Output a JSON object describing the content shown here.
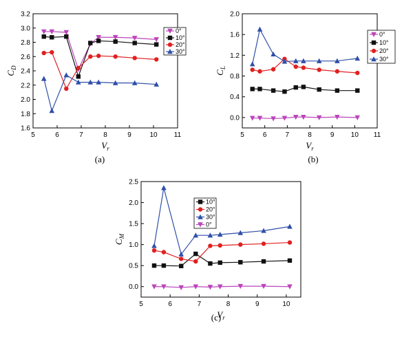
{
  "colors": {
    "s0": "#bb44bb",
    "s10": "#111111",
    "s20": "#e02020",
    "s30": "#2f4fa8"
  },
  "chart_data": [
    {
      "id": "a",
      "type": "line",
      "caption": "(a)",
      "ylabel_main": "C",
      "ylabel_sub": "D",
      "xlabel_main": "V",
      "xlabel_sub": "r",
      "xlim": [
        5,
        11
      ],
      "ylim": [
        1.6,
        3.2
      ],
      "xticks": [
        5,
        6,
        7,
        8,
        9,
        10,
        11
      ],
      "yticks": [
        1.6,
        1.8,
        2.0,
        2.2,
        2.4,
        2.6,
        2.8,
        3.0,
        3.2
      ],
      "ytick_labels": [
        "1.6",
        "1.8",
        "2.0",
        "2.2",
        "2.4",
        "2.6",
        "2.8",
        "3.0",
        "3.2"
      ],
      "legend": [
        "0°",
        "10°",
        "20°",
        "30°"
      ],
      "series": [
        {
          "name": "0°",
          "color_key": "s0",
          "marker": "tri-down",
          "x": [
            5.45,
            5.78,
            6.38,
            6.88,
            7.38,
            7.72,
            8.42,
            9.22,
            10.12
          ],
          "y": [
            2.95,
            2.95,
            2.94,
            2.42,
            2.78,
            2.87,
            2.87,
            2.86,
            2.84
          ]
        },
        {
          "name": "10°",
          "color_key": "s10",
          "marker": "square",
          "x": [
            5.45,
            5.78,
            6.38,
            6.88,
            7.38,
            7.72,
            8.42,
            9.22,
            10.12
          ],
          "y": [
            2.88,
            2.87,
            2.88,
            2.32,
            2.79,
            2.82,
            2.81,
            2.79,
            2.77
          ]
        },
        {
          "name": "20°",
          "color_key": "s20",
          "marker": "circle",
          "x": [
            5.45,
            5.78,
            6.38,
            6.88,
            7.38,
            7.72,
            8.42,
            9.22,
            10.12
          ],
          "y": [
            2.65,
            2.66,
            2.15,
            2.44,
            2.6,
            2.61,
            2.6,
            2.58,
            2.56
          ]
        },
        {
          "name": "30°",
          "color_key": "s30",
          "marker": "tri-up",
          "x": [
            5.45,
            5.78,
            6.38,
            6.88,
            7.38,
            7.72,
            8.42,
            9.22,
            10.12
          ],
          "y": [
            2.29,
            1.84,
            2.34,
            2.24,
            2.24,
            2.24,
            2.23,
            2.23,
            2.21
          ]
        }
      ]
    },
    {
      "id": "b",
      "type": "line",
      "caption": "(b)",
      "ylabel_main": "C",
      "ylabel_sub": "L",
      "xlabel_main": "V",
      "xlabel_sub": "r",
      "xlim": [
        5,
        11
      ],
      "ylim": [
        -0.2,
        2.0
      ],
      "xticks": [
        5,
        6,
        7,
        8,
        9,
        10,
        11
      ],
      "yticks": [
        0.0,
        0.4,
        0.8,
        1.2,
        1.6,
        2.0
      ],
      "ytick_labels": [
        "0.0",
        "0.4",
        "0.8",
        "1.2",
        "1.6",
        "2.0"
      ],
      "legend": [
        "0°",
        "10°",
        "20°",
        "30°"
      ],
      "series": [
        {
          "name": "0°",
          "color_key": "s0",
          "marker": "tri-down",
          "x": [
            5.45,
            5.78,
            6.38,
            6.88,
            7.38,
            7.72,
            8.42,
            9.22,
            10.12
          ],
          "y": [
            -0.01,
            -0.01,
            -0.02,
            -0.01,
            0.01,
            0.01,
            0.0,
            0.01,
            0.0
          ]
        },
        {
          "name": "10°",
          "color_key": "s10",
          "marker": "square",
          "x": [
            5.45,
            5.78,
            6.38,
            6.88,
            7.38,
            7.72,
            8.42,
            9.22,
            10.12
          ],
          "y": [
            0.55,
            0.55,
            0.52,
            0.5,
            0.58,
            0.59,
            0.54,
            0.52,
            0.52
          ]
        },
        {
          "name": "20°",
          "color_key": "s20",
          "marker": "circle",
          "x": [
            5.45,
            5.78,
            6.38,
            6.88,
            7.38,
            7.72,
            8.42,
            9.22,
            10.12
          ],
          "y": [
            0.92,
            0.89,
            0.93,
            1.13,
            0.98,
            0.96,
            0.92,
            0.89,
            0.86
          ]
        },
        {
          "name": "30°",
          "color_key": "s30",
          "marker": "tri-up",
          "x": [
            5.45,
            5.78,
            6.38,
            6.88,
            7.38,
            7.72,
            8.42,
            9.22,
            10.12
          ],
          "y": [
            1.03,
            1.7,
            1.22,
            1.08,
            1.09,
            1.09,
            1.09,
            1.09,
            1.14
          ]
        }
      ]
    },
    {
      "id": "c",
      "type": "line",
      "caption": "(c)",
      "ylabel_main": "C",
      "ylabel_sub": "M",
      "xlabel_main": "V",
      "xlabel_sub": "r",
      "xlim": [
        5,
        10.5
      ],
      "ylim": [
        -0.25,
        2.5
      ],
      "xticks": [
        5,
        6,
        7,
        8,
        9,
        10
      ],
      "yticks": [
        0.0,
        0.5,
        1.0,
        1.5,
        2.0,
        2.5
      ],
      "ytick_labels": [
        "0.0",
        "0.5",
        "1.0",
        "1.5",
        "2.0",
        "2.5"
      ],
      "legend": [
        "10°",
        "20°",
        "30°",
        "0°"
      ],
      "series": [
        {
          "name": "10°",
          "color_key": "s10",
          "marker": "square",
          "x": [
            5.45,
            5.78,
            6.38,
            6.88,
            7.38,
            7.72,
            8.42,
            9.22,
            10.12
          ],
          "y": [
            0.5,
            0.5,
            0.49,
            0.78,
            0.55,
            0.57,
            0.58,
            0.6,
            0.62
          ]
        },
        {
          "name": "20°",
          "color_key": "s20",
          "marker": "circle",
          "x": [
            5.45,
            5.78,
            6.38,
            6.88,
            7.38,
            7.72,
            8.42,
            9.22,
            10.12
          ],
          "y": [
            0.86,
            0.82,
            0.66,
            0.6,
            0.97,
            0.98,
            1.0,
            1.02,
            1.05
          ]
        },
        {
          "name": "30°",
          "color_key": "s30",
          "marker": "tri-up",
          "x": [
            5.45,
            5.78,
            6.38,
            6.88,
            7.38,
            7.72,
            8.42,
            9.22,
            10.12
          ],
          "y": [
            0.97,
            2.35,
            0.77,
            1.22,
            1.22,
            1.24,
            1.28,
            1.33,
            1.43
          ]
        },
        {
          "name": "0°",
          "color_key": "s0",
          "marker": "tri-down",
          "x": [
            5.45,
            5.78,
            6.38,
            6.88,
            7.38,
            7.72,
            8.42,
            9.22,
            10.12
          ],
          "y": [
            0.0,
            0.0,
            -0.02,
            0.0,
            -0.01,
            0.0,
            0.01,
            0.01,
            0.0
          ]
        }
      ]
    }
  ]
}
